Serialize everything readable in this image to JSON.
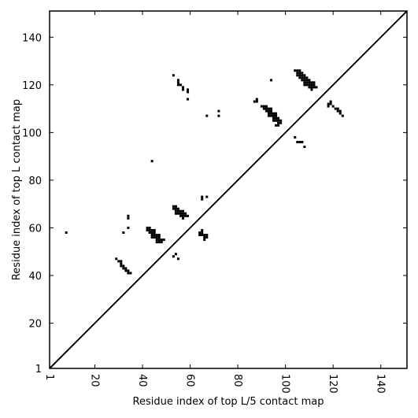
{
  "chart_data": {
    "type": "heatmap",
    "xlabel": "Residue index of top L/5 contact map",
    "ylabel": "Residue index of top L contact map",
    "xlim": [
      1,
      151
    ],
    "ylim": [
      1,
      151
    ],
    "x_ticks": [
      1,
      20,
      40,
      60,
      80,
      100,
      120,
      140
    ],
    "y_ticks": [
      1,
      20,
      40,
      60,
      80,
      100,
      120,
      140
    ],
    "diagonal": true,
    "grid": false,
    "contact_color": "#000000",
    "contacts": [
      [
        8,
        58
      ],
      [
        29,
        47
      ],
      [
        30,
        46
      ],
      [
        31,
        46
      ],
      [
        31,
        45
      ],
      [
        31,
        44
      ],
      [
        32,
        44
      ],
      [
        32,
        43
      ],
      [
        33,
        43
      ],
      [
        33,
        42
      ],
      [
        34,
        42
      ],
      [
        34,
        41
      ],
      [
        35,
        41
      ],
      [
        32,
        58
      ],
      [
        34,
        60
      ],
      [
        34,
        64
      ],
      [
        34,
        65
      ],
      [
        42,
        60
      ],
      [
        42,
        59
      ],
      [
        43,
        60
      ],
      [
        43,
        59
      ],
      [
        43,
        58
      ],
      [
        44,
        59
      ],
      [
        44,
        58
      ],
      [
        44,
        57
      ],
      [
        44,
        56
      ],
      [
        45,
        59
      ],
      [
        45,
        58
      ],
      [
        45,
        57
      ],
      [
        45,
        56
      ],
      [
        46,
        57
      ],
      [
        46,
        56
      ],
      [
        46,
        55
      ],
      [
        46,
        54
      ],
      [
        47,
        57
      ],
      [
        47,
        56
      ],
      [
        47,
        55
      ],
      [
        47,
        54
      ],
      [
        48,
        55
      ],
      [
        48,
        54
      ],
      [
        49,
        55
      ],
      [
        44,
        88
      ],
      [
        53,
        69
      ],
      [
        53,
        68
      ],
      [
        54,
        69
      ],
      [
        54,
        68
      ],
      [
        54,
        67
      ],
      [
        54,
        66
      ],
      [
        55,
        68
      ],
      [
        55,
        67
      ],
      [
        55,
        66
      ],
      [
        56,
        67
      ],
      [
        56,
        66
      ],
      [
        56,
        65
      ],
      [
        57,
        67
      ],
      [
        57,
        66
      ],
      [
        57,
        65
      ],
      [
        57,
        64
      ],
      [
        58,
        66
      ],
      [
        58,
        65
      ],
      [
        59,
        65
      ],
      [
        53,
        48
      ],
      [
        54,
        49
      ],
      [
        55,
        47
      ],
      [
        53,
        124
      ],
      [
        55,
        122
      ],
      [
        55,
        121
      ],
      [
        55,
        120
      ],
      [
        56,
        120
      ],
      [
        57,
        119
      ],
      [
        57,
        118
      ],
      [
        59,
        118
      ],
      [
        59,
        117
      ],
      [
        59,
        114
      ],
      [
        64,
        58
      ],
      [
        64,
        57
      ],
      [
        65,
        59
      ],
      [
        65,
        58
      ],
      [
        65,
        57
      ],
      [
        66,
        57
      ],
      [
        66,
        56
      ],
      [
        66,
        55
      ],
      [
        67,
        57
      ],
      [
        67,
        56
      ],
      [
        65,
        73
      ],
      [
        65,
        72
      ],
      [
        67,
        73
      ],
      [
        67,
        107
      ],
      [
        72,
        109
      ],
      [
        72,
        107
      ],
      [
        87,
        113
      ],
      [
        88,
        114
      ],
      [
        88,
        113
      ],
      [
        90,
        111
      ],
      [
        91,
        111
      ],
      [
        91,
        110
      ],
      [
        92,
        111
      ],
      [
        92,
        110
      ],
      [
        92,
        109
      ],
      [
        93,
        110
      ],
      [
        93,
        109
      ],
      [
        93,
        108
      ],
      [
        93,
        107
      ],
      [
        94,
        110
      ],
      [
        94,
        109
      ],
      [
        94,
        108
      ],
      [
        94,
        107
      ],
      [
        95,
        108
      ],
      [
        95,
        107
      ],
      [
        95,
        106
      ],
      [
        95,
        105
      ],
      [
        96,
        108
      ],
      [
        96,
        107
      ],
      [
        96,
        106
      ],
      [
        96,
        105
      ],
      [
        96,
        103
      ],
      [
        97,
        106
      ],
      [
        97,
        105
      ],
      [
        97,
        104
      ],
      [
        97,
        103
      ],
      [
        98,
        105
      ],
      [
        98,
        104
      ],
      [
        94,
        122
      ],
      [
        104,
        126
      ],
      [
        104,
        98
      ],
      [
        105,
        126
      ],
      [
        105,
        125
      ],
      [
        105,
        124
      ],
      [
        105,
        96
      ],
      [
        106,
        126
      ],
      [
        106,
        125
      ],
      [
        106,
        124
      ],
      [
        106,
        123
      ],
      [
        106,
        96
      ],
      [
        107,
        125
      ],
      [
        107,
        124
      ],
      [
        107,
        123
      ],
      [
        107,
        122
      ],
      [
        107,
        96
      ],
      [
        108,
        124
      ],
      [
        108,
        123
      ],
      [
        108,
        122
      ],
      [
        108,
        121
      ],
      [
        108,
        120
      ],
      [
        108,
        94
      ],
      [
        109,
        123
      ],
      [
        109,
        122
      ],
      [
        109,
        121
      ],
      [
        109,
        120
      ],
      [
        110,
        122
      ],
      [
        110,
        121
      ],
      [
        110,
        120
      ],
      [
        110,
        119
      ],
      [
        111,
        121
      ],
      [
        111,
        120
      ],
      [
        111,
        119
      ],
      [
        111,
        118
      ],
      [
        112,
        121
      ],
      [
        112,
        120
      ],
      [
        112,
        119
      ],
      [
        113,
        119
      ],
      [
        118,
        112
      ],
      [
        118,
        111
      ],
      [
        119,
        113
      ],
      [
        119,
        112
      ],
      [
        120,
        111
      ],
      [
        121,
        110
      ],
      [
        122,
        110
      ],
      [
        122,
        109
      ],
      [
        123,
        109
      ],
      [
        123,
        108
      ],
      [
        124,
        107
      ]
    ]
  }
}
